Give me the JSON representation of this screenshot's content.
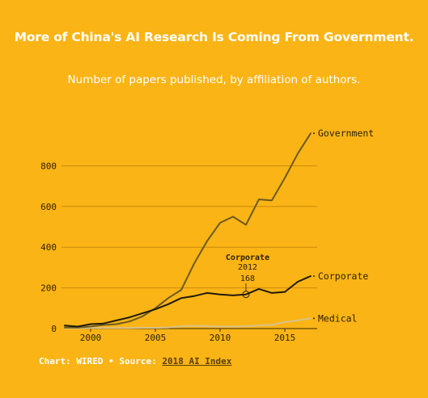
{
  "colors": {
    "background": "#FBB416",
    "grid": "#C98A0B",
    "axis": "#3a2a00",
    "government": "#6B5A1E",
    "corporate": "#1F1A0A",
    "medical": "#D8C28A",
    "text": "#2b2100"
  },
  "footer": {
    "credit": "Chart: WIRED • Source: ",
    "source_link": "2018 AI Index"
  },
  "chart_data": {
    "type": "line",
    "title": "More of China's AI Research Is Coming From Government.",
    "subtitle": "Number of papers published, by affiliation of authors.",
    "xlabel": "",
    "ylabel": "",
    "xlim": [
      1998,
      2017.5
    ],
    "ylim": [
      0,
      1000
    ],
    "x_ticks": [
      "2000",
      "2005",
      "2010",
      "2015"
    ],
    "y_ticks": [
      "0",
      "200",
      "400",
      "600",
      "800"
    ],
    "grid": true,
    "x": [
      1998,
      1999,
      2000,
      2001,
      2002,
      2003,
      2004,
      2005,
      2006,
      2007,
      2008,
      2009,
      2010,
      2011,
      2012,
      2013,
      2014,
      2015,
      2016,
      2017
    ],
    "series": [
      {
        "name": "Government",
        "color": "#6B5A1E",
        "values": [
          5,
          5,
          10,
          18,
          22,
          35,
          60,
          100,
          150,
          190,
          320,
          430,
          520,
          550,
          510,
          635,
          630,
          740,
          860,
          960
        ]
      },
      {
        "name": "Corporate",
        "color": "#1F1A0A",
        "values": [
          15,
          10,
          22,
          25,
          40,
          55,
          75,
          95,
          120,
          150,
          160,
          175,
          168,
          163,
          168,
          195,
          175,
          180,
          230,
          258
        ]
      },
      {
        "name": "Medical",
        "color": "#D8C28A",
        "values": [
          2,
          2,
          3,
          3,
          3,
          3,
          4,
          4,
          5,
          12,
          14,
          12,
          10,
          10,
          12,
          15,
          18,
          32,
          40,
          50
        ]
      }
    ],
    "annotation": {
      "series": "Corporate",
      "label": "Corporate",
      "year_label": "2012",
      "value_label": "168",
      "x": 2012,
      "y": 168
    }
  }
}
